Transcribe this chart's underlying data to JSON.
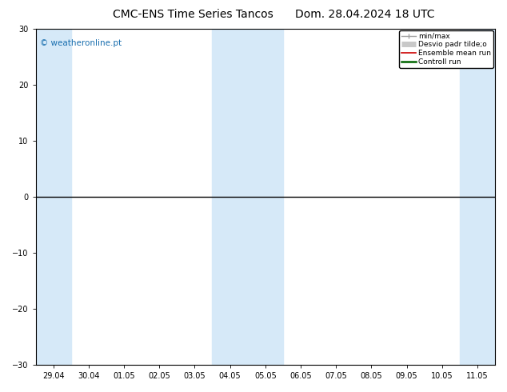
{
  "title": "CMC-ENS Time Series Tancos",
  "title2": "Dom. 28.04.2024 18 UTC",
  "watermark": "© weatheronline.pt",
  "x_labels": [
    "29.04",
    "30.04",
    "01.05",
    "02.05",
    "03.05",
    "04.05",
    "05.05",
    "06.05",
    "07.05",
    "08.05",
    "09.05",
    "10.05",
    "11.05"
  ],
  "ylim": [
    -30,
    30
  ],
  "yticks": [
    -30,
    -20,
    -10,
    0,
    10,
    20,
    30
  ],
  "shaded_color": "#d6e9f8",
  "hline_y": 0,
  "hline_color": "#000000",
  "bg_color": "#ffffff",
  "plot_bg_color": "#ffffff",
  "border_color": "#000000",
  "title_fontsize": 10,
  "tick_fontsize": 7,
  "watermark_color": "#1a6faf",
  "watermark_fontsize": 7.5
}
